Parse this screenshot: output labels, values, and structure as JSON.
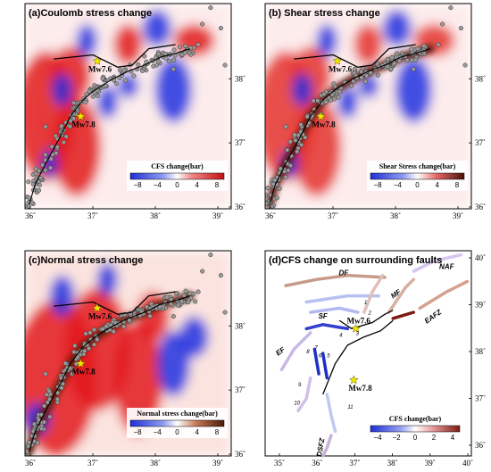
{
  "panels": [
    {
      "id": "a",
      "title": "(a)Coulomb stress change",
      "type": "stress",
      "scheme": "cfs",
      "x_ticks": [
        "36˚",
        "37˚",
        "38˚",
        "39˚"
      ],
      "y_ticks": [
        "36˚",
        "37˚",
        "38˚"
      ],
      "labels": [
        "Mw7.6",
        "Mw7.8"
      ],
      "colorbar": {
        "title": "CFS change(bar)",
        "ticks": [
          "−8",
          "−4",
          "0",
          "4",
          "8"
        ]
      }
    },
    {
      "id": "b",
      "title": "(b) Shear stress change",
      "type": "stress",
      "scheme": "shear",
      "x_ticks": [
        "36˚",
        "37˚",
        "38˚",
        "39˚"
      ],
      "y_ticks": [
        "36˚",
        "37˚",
        "38˚"
      ],
      "labels": [
        "Mw7.6",
        "Mw7.8"
      ],
      "colorbar": {
        "title": "Shear Stress change(bar)",
        "ticks": [
          "−8",
          "−4",
          "0",
          "4",
          "8"
        ]
      }
    },
    {
      "id": "c",
      "title": "(c)Normal stress change",
      "type": "stress",
      "scheme": "normal",
      "x_ticks": [
        "36˚",
        "37˚",
        "38˚",
        "39˚"
      ],
      "y_ticks": [
        "36˚",
        "37˚",
        "38˚"
      ],
      "labels": [
        "Mw7.6",
        "Mw7.8"
      ],
      "colorbar": {
        "title": "Normal stress change(bar)",
        "ticks": [
          "−8",
          "−4",
          "0",
          "4",
          "8"
        ]
      }
    },
    {
      "id": "d",
      "title": "(d)CFS change on surrounding faults",
      "type": "faults",
      "x_ticks": [
        "35˚",
        "36˚",
        "37˚",
        "38˚",
        "39˚",
        "40˚"
      ],
      "y_ticks": [
        "36˚",
        "37˚",
        "38˚",
        "39˚",
        "40˚"
      ],
      "labels": [
        "Mw7.6",
        "Mw7.8"
      ],
      "fault_names": [
        "NAF",
        "DF",
        "MF",
        "SF",
        "EAFZ",
        "EF",
        "DSFZ"
      ],
      "segment_numbers": [
        "1",
        "2",
        "3",
        "4",
        "5",
        "6",
        "7",
        "8",
        "9",
        "10",
        "11"
      ],
      "colorbar": {
        "title": "CFS change(bar)",
        "ticks": [
          "−4",
          "−2",
          "0",
          "2",
          "4"
        ]
      }
    }
  ],
  "colors": {
    "positive": "#d7191c",
    "negative": "#1f2fd8",
    "brown": "#6b2a12",
    "star": "#f2e400",
    "aftershock_fill": "#9a9a9a",
    "rupture": "#000000"
  }
}
